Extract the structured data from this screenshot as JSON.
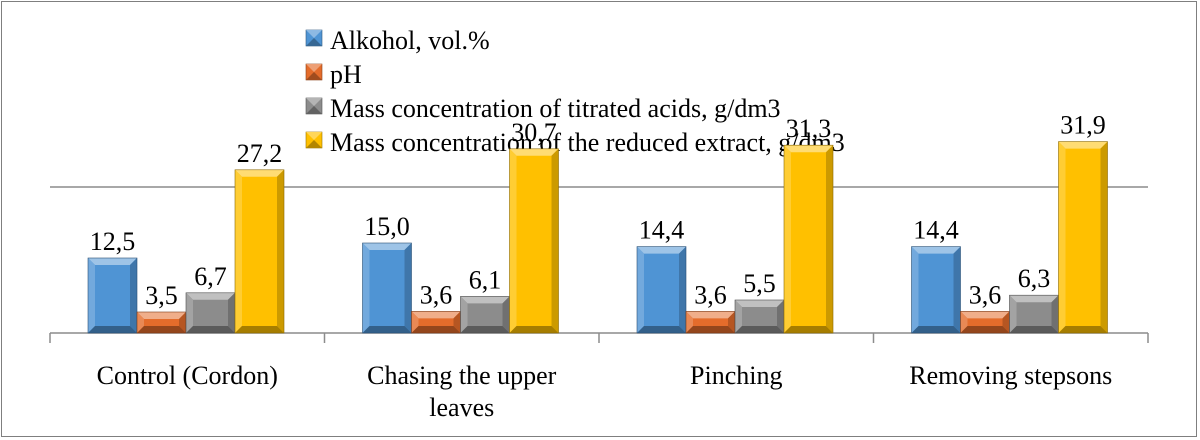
{
  "chart_data": {
    "type": "bar",
    "categories": [
      [
        "Control (Cordon)"
      ],
      [
        "Chasing the upper",
        "leaves"
      ],
      [
        "Pinching"
      ],
      [
        "Removing stepsons"
      ]
    ],
    "series": [
      {
        "name": "Alkohol, vol.%",
        "color": "#4f94d4",
        "values": [
          12.5,
          15.0,
          14.4,
          14.4
        ],
        "labels": [
          "12,5",
          "15,0",
          "14,4",
          "14,4"
        ]
      },
      {
        "name": "pH",
        "color": "#e46c2b",
        "values": [
          3.5,
          3.6,
          3.6,
          3.6
        ],
        "labels": [
          "3,5",
          "3,6",
          "3,6",
          "3,6"
        ]
      },
      {
        "name": "Mass concentration of titrated acids, g/dm3",
        "color": "#8c8c8c",
        "values": [
          6.7,
          6.1,
          5.5,
          6.3
        ],
        "labels": [
          "6,7",
          "6,1",
          "5,5",
          "6,3"
        ]
      },
      {
        "name": "Mass concentration of the reduced extract, g/dm3",
        "color": "#ffc000",
        "values": [
          27.2,
          30.7,
          31.3,
          31.9
        ],
        "labels": [
          "27,2",
          "30,7",
          "31,3",
          "31,9"
        ]
      }
    ],
    "ylim": [
      0,
      40
    ],
    "legend_position": "top",
    "grid": false,
    "bar_style": "3d-bevel"
  }
}
